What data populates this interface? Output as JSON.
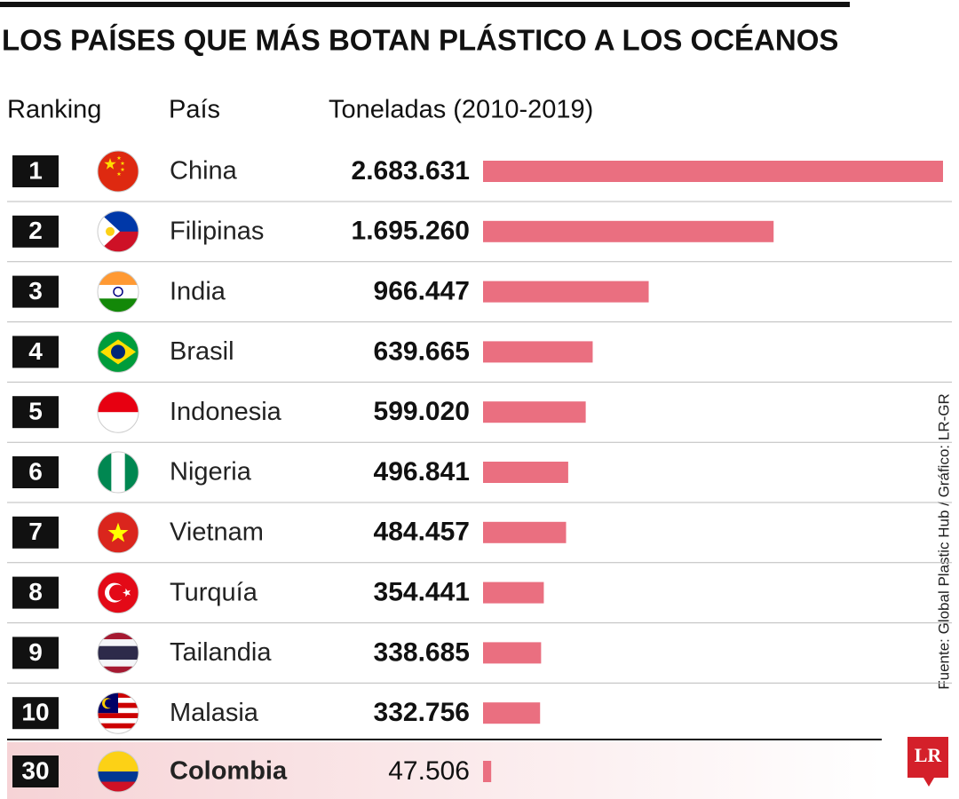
{
  "chart_data": {
    "type": "bar",
    "title": "LOS PAÍSES QUE MÁS BOTAN PLÁSTICO A LOS OCÉANOS",
    "headers": {
      "rank": "Ranking",
      "country": "País",
      "value": "Toneladas (2010-2019)"
    },
    "ranks": [
      1,
      2,
      3,
      4,
      5,
      6,
      7,
      8,
      9,
      10,
      30
    ],
    "categories": [
      "China",
      "Filipinas",
      "India",
      "Brasil",
      "Indonesia",
      "Nigeria",
      "Vietnam",
      "Turquía",
      "Tailandia",
      "Malasia",
      "Colombia"
    ],
    "values": [
      2683631,
      1695260,
      966447,
      639665,
      599020,
      496841,
      484457,
      354441,
      338685,
      332756,
      47506
    ],
    "value_labels": [
      "2.683.631",
      "1.695.260",
      "966.447",
      "639.665",
      "599.020",
      "496.841",
      "484.457",
      "354.441",
      "338.685",
      "332.756",
      "47.506"
    ],
    "color": "#ea6f80",
    "source": "Fuente: Global Plastic Hub / Gráfico: LR-GR",
    "logo": "LR"
  }
}
